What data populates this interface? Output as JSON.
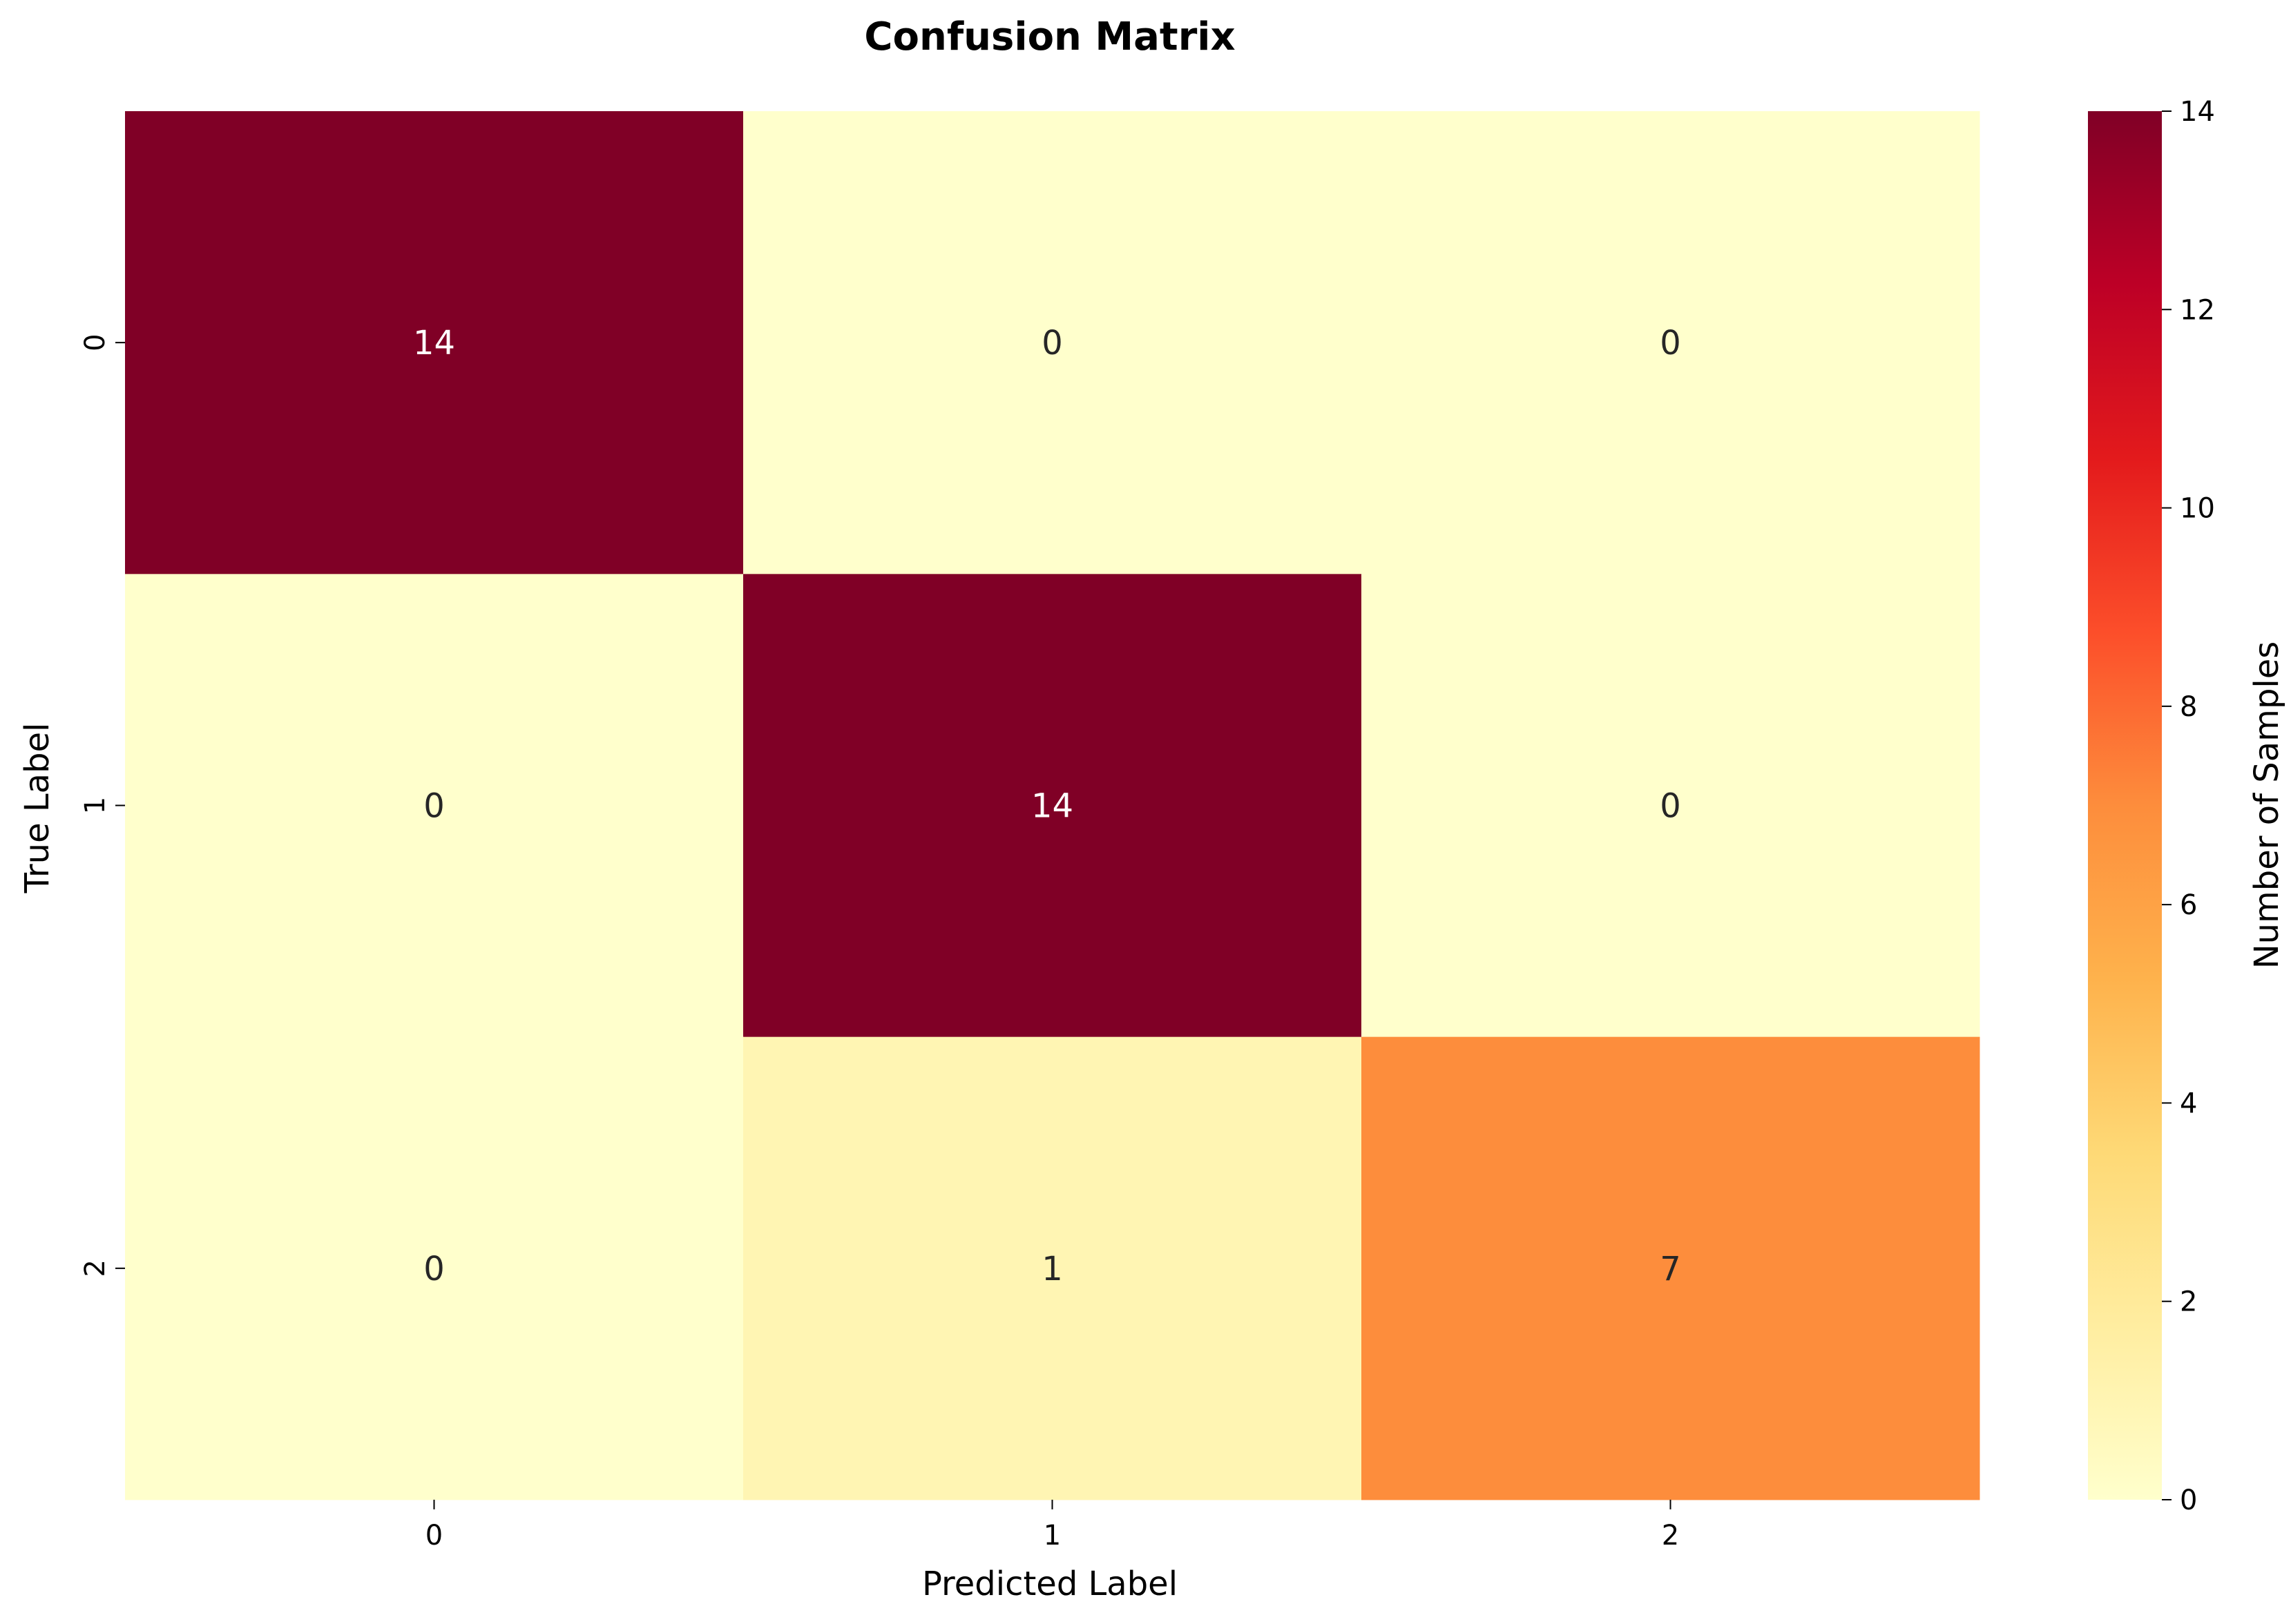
{
  "chart_data": {
    "type": "heatmap",
    "title": "Confusion Matrix",
    "xlabel": "Predicted Label",
    "ylabel": "True Label",
    "x_categories": [
      "0",
      "1",
      "2"
    ],
    "y_categories": [
      "0",
      "1",
      "2"
    ],
    "values": [
      [
        14,
        0,
        0
      ],
      [
        0,
        14,
        0
      ],
      [
        0,
        1,
        7
      ]
    ],
    "colorbar": {
      "label": "Number of Samples",
      "range": [
        0,
        14
      ],
      "ticks": [
        "0",
        "2",
        "4",
        "6",
        "8",
        "10",
        "12",
        "14"
      ],
      "colormap": "YlOrRd",
      "color_stops": [
        "#ffffcc",
        "#ffeda0",
        "#fed976",
        "#feb24c",
        "#fd8d3c",
        "#fc4e2a",
        "#e31a1c",
        "#bd0026",
        "#800026"
      ]
    },
    "grid": false,
    "annotation_colors": {
      "dark": "#262626",
      "light": "#ffffff"
    }
  }
}
